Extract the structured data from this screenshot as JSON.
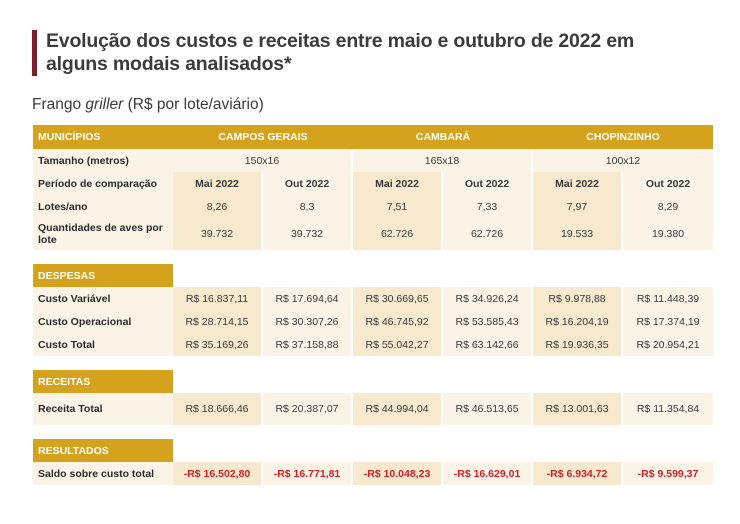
{
  "title": "Evolução dos custos e receitas entre maio e outubro de 2022 em alguns modais analisados*",
  "subtitle": {
    "main": "Frango ",
    "italic": "griller",
    "rest": " (R$ por lote/aviário)"
  },
  "header": {
    "col0": "MUNICÍPIOS",
    "cities": [
      "CAMPOS GERAIS",
      "CAMBARÁ",
      "CHOPINZINHO"
    ]
  },
  "rows": {
    "tamanho": {
      "label": "Tamanho (metros)",
      "values": [
        "150x16",
        "165x18",
        "100x12"
      ]
    },
    "periodo": {
      "label": "Período de comparação",
      "values": [
        "Mai 2022",
        "Out 2022",
        "Mai 2022",
        "Out 2022",
        "Mai 2022",
        "Out 2022"
      ]
    },
    "lotes": {
      "label": "Lotes/ano",
      "values": [
        "8,26",
        "8,3",
        "7,51",
        "7,33",
        "7,97",
        "8,29"
      ]
    },
    "quantidades": {
      "label": "Quantidades de aves por lote",
      "values": [
        "39.732",
        "39.732",
        "62.726",
        "62.726",
        "19.533",
        "19.380"
      ]
    }
  },
  "despesas": {
    "section": "DESPESAS",
    "rows": [
      {
        "label": "Custo Variável",
        "values": [
          "R$ 16.837,11",
          "R$ 17.694,64",
          "R$ 30.669,65",
          "R$ 34.926,24",
          "R$ 9.978,88",
          "R$ 11.448,39"
        ]
      },
      {
        "label": "Custo Operacional",
        "values": [
          "R$ 28.714,15",
          "R$ 30.307,26",
          "R$ 46.745,92",
          "R$ 53.585,43",
          "R$ 16.204,19",
          "R$ 17.374,19"
        ]
      },
      {
        "label": "Custo Total",
        "values": [
          "R$ 35.169,26",
          "R$ 37.158,88",
          "R$ 55.042,27",
          "R$ 63.142,66",
          "R$ 19.936,35",
          "R$ 20.954,21"
        ]
      }
    ]
  },
  "receitas": {
    "section": "RECEITAS",
    "rows": [
      {
        "label": "Receita Total",
        "values": [
          "R$ 18.666,46",
          "R$ 20.387,07",
          "R$ 44.994,04",
          "R$ 46.513,65",
          "R$ 13.001,63",
          "R$ 11.354,84"
        ]
      }
    ]
  },
  "resultados": {
    "section": "RESULTADOS",
    "rows": [
      {
        "label": "Saldo sobre custo total",
        "values": [
          "-R$ 16.502,80",
          "-R$ 16.771,81",
          "-R$ 10.048,23",
          "-R$ 16.629,01",
          "-R$ 6.934,72",
          "-R$ 9.599,37"
        ]
      }
    ]
  },
  "colors": {
    "title_bar": "#7a1f2b",
    "header_gold": "#d4a21d",
    "negative_red": "#d0202a",
    "cell_light": "#fbf4e6",
    "cell_mid": "#f6e9cd"
  }
}
